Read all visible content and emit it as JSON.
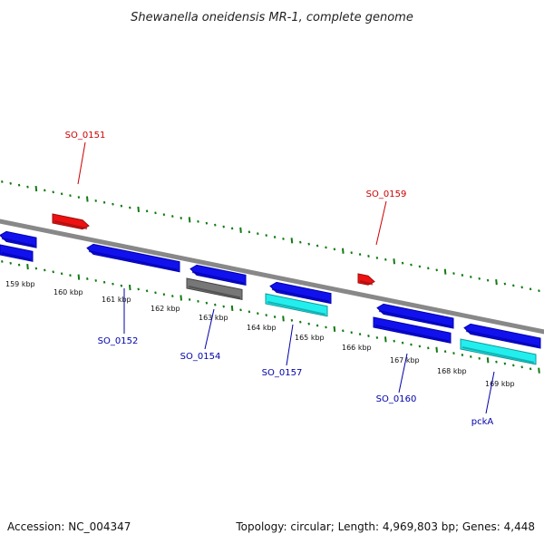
{
  "title": "Shewanella oneidensis MR-1, complete genome",
  "footer": {
    "accession": "Accession: NC_004347",
    "summary": "Topology: circular; Length: 4,969,803 bp; Genes: 4,448"
  },
  "colors": {
    "backbone": "#888888",
    "tick_green": "#117a11",
    "forward_label": "#cc0000",
    "reverse_label": "#0000aa",
    "feature_red": "#ee1111",
    "feature_blue": "#1111ee",
    "feature_cyan": "#22eeee",
    "feature_gray": "#777777"
  },
  "kbp_labels": [
    "159 kbp",
    "160 kbp",
    "161 kbp",
    "162 kbp",
    "163 kbp",
    "164 kbp",
    "165 kbp",
    "166 kbp",
    "167 kbp",
    "168 kbp",
    "169 kbp"
  ],
  "gene_labels": {
    "forward": [
      "SO_0151",
      "SO_0159"
    ],
    "reverse": [
      "SO_0152",
      "SO_0154",
      "SO_0157",
      "SO_0160",
      "pckA"
    ]
  },
  "features": [
    {
      "strand": "forward",
      "color": "red"
    },
    {
      "strand": "forward",
      "color": "red"
    },
    {
      "strand": "reverse",
      "color": "blue"
    },
    {
      "strand": "reverse",
      "color": "blue"
    },
    {
      "strand": "reverse",
      "color": "blue"
    },
    {
      "strand": "reverse",
      "color": "blue"
    },
    {
      "strand": "reverse",
      "color": "blue"
    },
    {
      "strand": "reverse",
      "color": "blue"
    },
    {
      "strand": "reverse",
      "color": "blue"
    },
    {
      "strand": "reverse",
      "color": "blue"
    },
    {
      "strand": "reverse",
      "color": "cyan"
    },
    {
      "strand": "reverse",
      "color": "cyan"
    },
    {
      "strand": "reverse",
      "color": "gray"
    },
    {
      "strand": "reverse",
      "color": "gray"
    }
  ]
}
